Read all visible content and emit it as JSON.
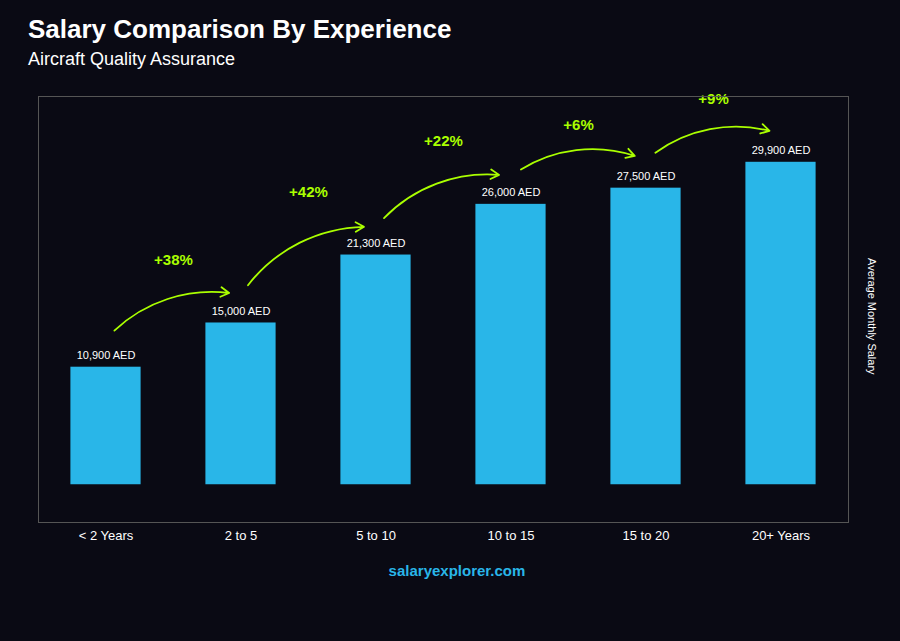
{
  "chart_data": {
    "type": "bar",
    "title": "Salary Comparison By Experience",
    "subtitle": "Aircraft Quality Assurance",
    "ylabel": "Average Monthly Salary",
    "categories": [
      "< 2 Years",
      "2 to 5",
      "5 to 10",
      "10 to 15",
      "15 to 20",
      "20+ Years"
    ],
    "values": [
      10900,
      15000,
      21300,
      26000,
      27500,
      29900
    ],
    "value_labels": [
      "10,900 AED",
      "15,000 AED",
      "21,300 AED",
      "26,000 AED",
      "27,500 AED",
      "29,900 AED"
    ],
    "data_labels": true,
    "color": "#29b6e8",
    "ylim": [
      -3500,
      36000
    ],
    "yticks": [],
    "tick_labels": "x",
    "grid": false,
    "annotations": [
      {
        "text": "+38%",
        "color": "#aaff00"
      },
      {
        "text": "+42%",
        "color": "#aaff00"
      },
      {
        "text": "+22%",
        "color": "#aaff00"
      },
      {
        "text": "+6%",
        "color": "#aaff00"
      },
      {
        "text": "+9%",
        "color": "#aaff00"
      }
    ],
    "caption": "salaryexplorer.com"
  }
}
